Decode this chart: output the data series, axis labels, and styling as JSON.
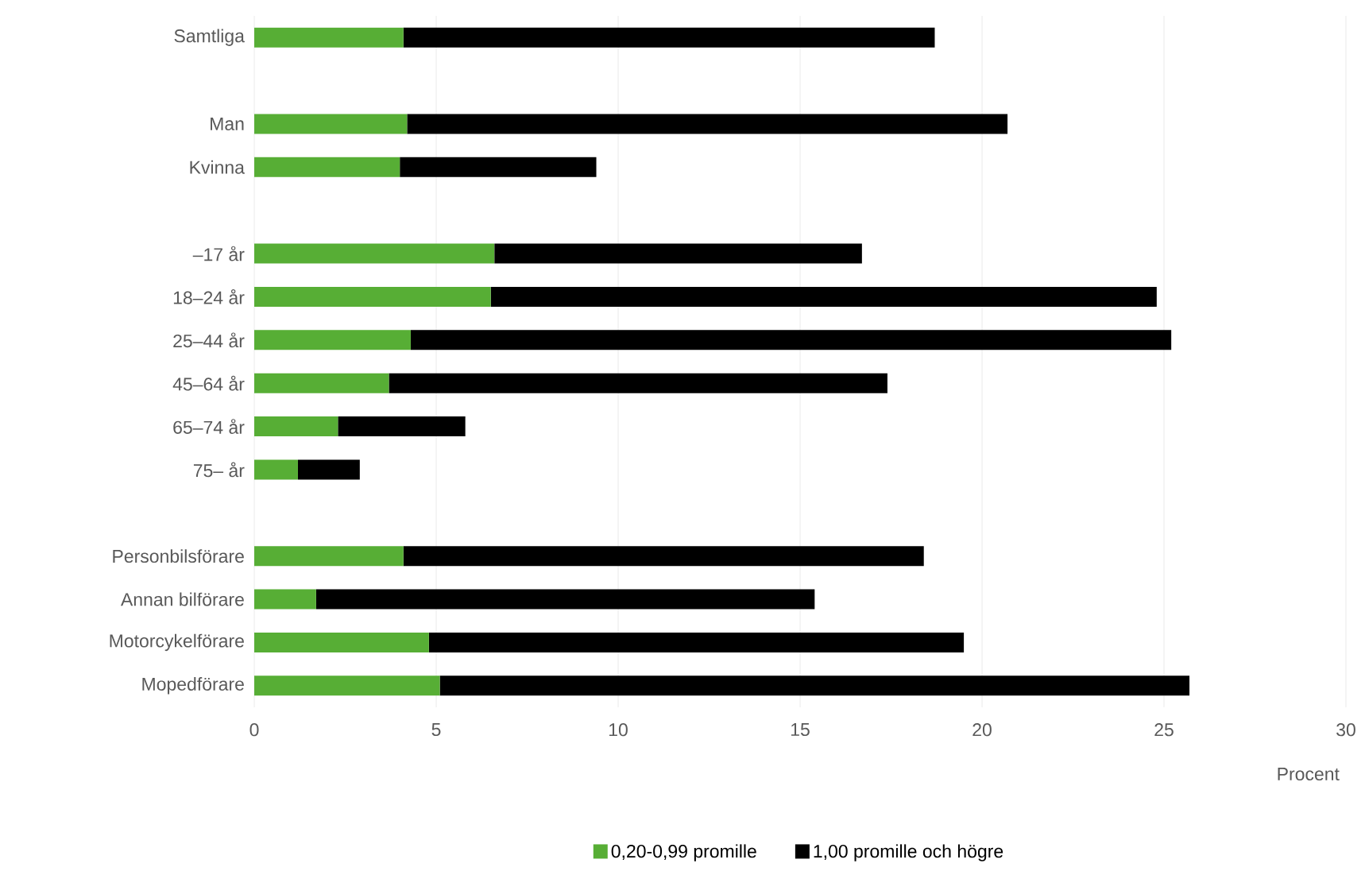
{
  "chart_data": {
    "type": "bar",
    "orientation": "horizontal",
    "stacked": true,
    "xlabel": "Procent",
    "categories": [
      "Samtliga",
      null,
      "Man",
      "Kvinna",
      null,
      "–17 år",
      "18–24 år",
      "25–44 år",
      "45–64 år",
      "65–74 år",
      "75– år",
      null,
      "Personbilsförare",
      "Annan bilförare",
      "Motorcykelförare",
      "Mopedförare"
    ],
    "series": [
      {
        "name": "0,20-0,99 promille",
        "color": "#57ae35",
        "values": [
          4.1,
          null,
          4.2,
          4.0,
          null,
          6.6,
          6.5,
          4.3,
          3.7,
          2.3,
          1.2,
          null,
          4.1,
          1.7,
          4.8,
          5.1
        ]
      },
      {
        "name": "1,00 promille och högre",
        "color": "#000000",
        "values": [
          14.6,
          null,
          16.5,
          5.4,
          null,
          10.1,
          18.3,
          20.9,
          13.7,
          3.5,
          1.7,
          null,
          14.3,
          13.7,
          14.7,
          20.6
        ]
      }
    ],
    "xlim": [
      0,
      30
    ],
    "xticks": [
      0,
      5,
      10,
      15,
      20,
      25,
      30
    ],
    "grid": "x",
    "legend": "bottom"
  }
}
